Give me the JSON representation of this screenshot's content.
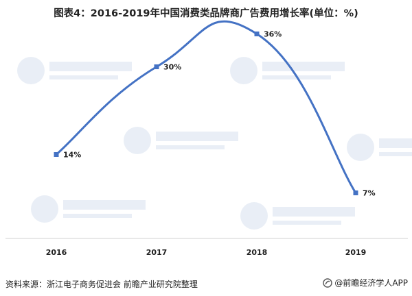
{
  "title": "图表4：2016-2019年中国消费类品牌商广告费用增长率(单位：%)",
  "chart_data": {
    "type": "line",
    "categories": [
      "2016",
      "2017",
      "2018",
      "2019"
    ],
    "values": [
      14,
      30,
      36,
      7
    ],
    "data_labels": [
      "14%",
      "30%",
      "36%",
      "7%"
    ],
    "title": "图表4：2016-2019年中国消费类品牌商广告费用增长率(单位：%)",
    "xlabel": "",
    "ylabel": "",
    "ylim": [
      0,
      40
    ],
    "grid": false,
    "smooth": true,
    "color": "#4472c4"
  },
  "footer": {
    "source": "资料来源：浙江电子商务促进会  前瞻产业研究院整理",
    "brand": "@前瞻经济学人APP"
  },
  "icons": {
    "brand_logo": "qianzhan-logo-icon",
    "watermark": "qianzhan-watermark-logo"
  }
}
